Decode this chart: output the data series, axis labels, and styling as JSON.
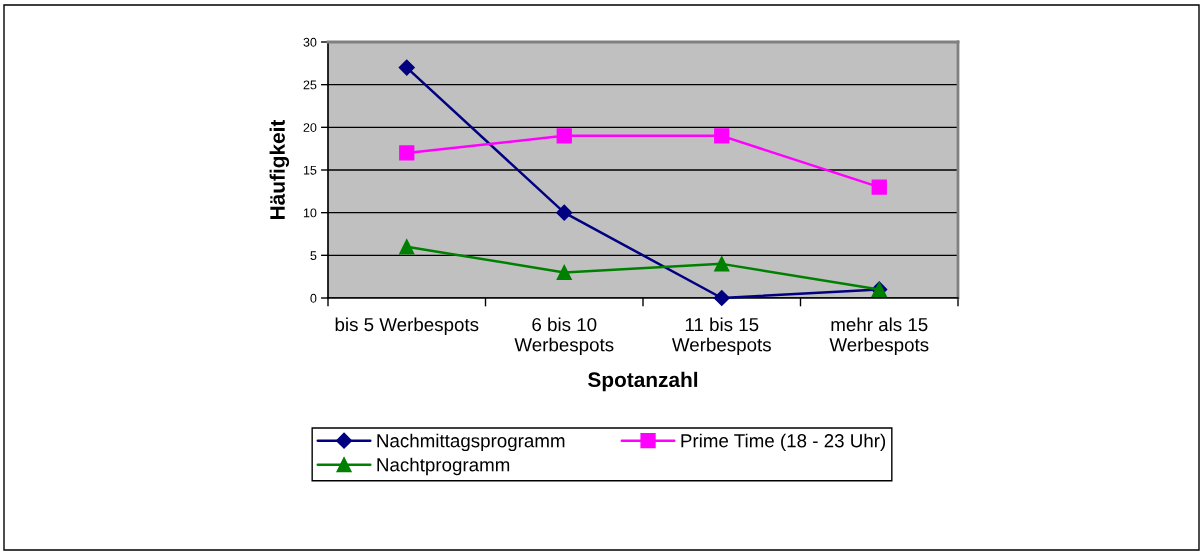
{
  "chart_data": {
    "type": "line",
    "xlabel": "Spotanzahl",
    "ylabel": "Häufigkeit",
    "categories": [
      "bis 5 Werbespots",
      "6 bis 10\nWerbespots",
      "11 bis 15\nWerbespots",
      "mehr als 15\nWerbespots"
    ],
    "series": [
      {
        "name": "Nachmittagsprogramm",
        "color": "#000080",
        "marker": "diamond",
        "values": [
          27,
          10,
          0,
          1
        ]
      },
      {
        "name": "Prime Time (18 - 23 Uhr)",
        "color": "#ff00ff",
        "marker": "square",
        "values": [
          17,
          19,
          19,
          13
        ]
      },
      {
        "name": "Nachtprogramm",
        "color": "#008000",
        "marker": "triangle",
        "values": [
          6,
          3,
          4,
          1
        ]
      }
    ],
    "ylim": [
      0,
      30
    ],
    "yticks": [
      0,
      5,
      10,
      15,
      20,
      25,
      30
    ],
    "grid": "y",
    "legend": "bottom",
    "line_style": "solid"
  }
}
